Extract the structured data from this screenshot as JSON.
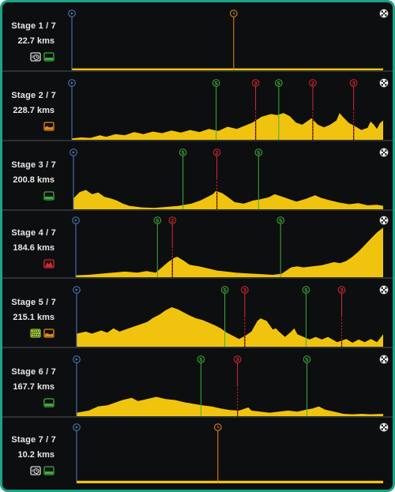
{
  "colors": {
    "background": "#0d0e10",
    "border": "#1aa487",
    "profile_fill": "#f0c30f",
    "sprint": "#3fae3a",
    "climb": "#d8282f",
    "start": "#4f7fbf",
    "time_check": "#e58a16",
    "text": "#e8e8e8"
  },
  "stages": [
    {
      "name": "Stage 1 / 7",
      "distance": "22.7 kms",
      "icons": [
        "time-trial-icon",
        "flat-icon"
      ],
      "marks": [
        {
          "type": "time",
          "km": 11.8
        }
      ],
      "profile": [
        [
          0,
          0.05
        ],
        [
          100,
          0.05
        ]
      ]
    },
    {
      "name": "Stage 2 / 7",
      "distance": "228.7 kms",
      "icons": [
        "hilly-icon"
      ],
      "marks": [
        {
          "type": "sprint",
          "km": 106
        },
        {
          "type": "climb",
          "km": 135,
          "label": "3"
        },
        {
          "type": "sprint",
          "km": 152
        },
        {
          "type": "climb",
          "km": 177,
          "label": "2"
        },
        {
          "type": "climb",
          "km": 207,
          "label": "3"
        }
      ],
      "profile": [
        [
          0,
          0.04
        ],
        [
          3,
          0.06
        ],
        [
          6,
          0.05
        ],
        [
          9,
          0.1
        ],
        [
          11,
          0.07
        ],
        [
          14,
          0.12
        ],
        [
          17,
          0.1
        ],
        [
          20,
          0.16
        ],
        [
          23,
          0.12
        ],
        [
          26,
          0.17
        ],
        [
          29,
          0.14
        ],
        [
          32,
          0.19
        ],
        [
          35,
          0.15
        ],
        [
          38,
          0.2
        ],
        [
          41,
          0.16
        ],
        [
          44,
          0.22
        ],
        [
          47,
          0.18
        ],
        [
          50,
          0.26
        ],
        [
          53,
          0.22
        ],
        [
          56,
          0.29
        ],
        [
          58,
          0.34
        ],
        [
          61,
          0.45
        ],
        [
          64,
          0.5
        ],
        [
          66,
          0.48
        ],
        [
          68,
          0.52
        ],
        [
          70,
          0.46
        ],
        [
          72,
          0.34
        ],
        [
          74,
          0.3
        ],
        [
          76,
          0.38
        ],
        [
          77,
          0.42
        ],
        [
          79,
          0.3
        ],
        [
          81,
          0.25
        ],
        [
          83,
          0.3
        ],
        [
          85,
          0.38
        ],
        [
          86,
          0.52
        ],
        [
          87,
          0.45
        ],
        [
          89,
          0.33
        ],
        [
          91,
          0.27
        ],
        [
          93,
          0.2
        ],
        [
          95,
          0.24
        ],
        [
          96,
          0.36
        ],
        [
          97,
          0.3
        ],
        [
          98,
          0.22
        ],
        [
          99,
          0.33
        ],
        [
          100,
          0.38
        ]
      ]
    },
    {
      "name": "Stage 3 / 7",
      "distance": "200.8 kms",
      "icons": [
        "flat-icon"
      ],
      "marks": [
        {
          "type": "sprint",
          "km": 71
        },
        {
          "type": "climb",
          "km": 93,
          "label": "2"
        },
        {
          "type": "sprint",
          "km": 120
        }
      ],
      "profile": [
        [
          0,
          0.22
        ],
        [
          2,
          0.34
        ],
        [
          4,
          0.38
        ],
        [
          6,
          0.3
        ],
        [
          8,
          0.33
        ],
        [
          10,
          0.25
        ],
        [
          12,
          0.22
        ],
        [
          14,
          0.18
        ],
        [
          16,
          0.12
        ],
        [
          18,
          0.08
        ],
        [
          22,
          0.05
        ],
        [
          26,
          0.04
        ],
        [
          30,
          0.06
        ],
        [
          34,
          0.08
        ],
        [
          38,
          0.12
        ],
        [
          41,
          0.18
        ],
        [
          43,
          0.24
        ],
        [
          45,
          0.3
        ],
        [
          46,
          0.36
        ],
        [
          48,
          0.32
        ],
        [
          50,
          0.24
        ],
        [
          52,
          0.15
        ],
        [
          55,
          0.12
        ],
        [
          58,
          0.18
        ],
        [
          60,
          0.2
        ],
        [
          63,
          0.24
        ],
        [
          65,
          0.3
        ],
        [
          67,
          0.26
        ],
        [
          70,
          0.2
        ],
        [
          72,
          0.16
        ],
        [
          75,
          0.21
        ],
        [
          78,
          0.28
        ],
        [
          80,
          0.23
        ],
        [
          83,
          0.18
        ],
        [
          86,
          0.14
        ],
        [
          89,
          0.11
        ],
        [
          92,
          0.13
        ],
        [
          95,
          0.09
        ],
        [
          98,
          0.1
        ],
        [
          100,
          0.08
        ]
      ]
    },
    {
      "name": "Stage 4 / 7",
      "distance": "184.6 kms",
      "icons": [
        "mountain-icon"
      ],
      "marks": [
        {
          "type": "sprint",
          "km": 49
        },
        {
          "type": "climb",
          "km": 58,
          "label": "2"
        },
        {
          "type": "sprint",
          "km": 123
        }
      ],
      "profile": [
        [
          0,
          0.05
        ],
        [
          4,
          0.06
        ],
        [
          8,
          0.08
        ],
        [
          12,
          0.1
        ],
        [
          16,
          0.12
        ],
        [
          20,
          0.1
        ],
        [
          23,
          0.13
        ],
        [
          26,
          0.1
        ],
        [
          28,
          0.2
        ],
        [
          30,
          0.3
        ],
        [
          32,
          0.38
        ],
        [
          33,
          0.4
        ],
        [
          35,
          0.33
        ],
        [
          37,
          0.25
        ],
        [
          40,
          0.22
        ],
        [
          43,
          0.18
        ],
        [
          46,
          0.14
        ],
        [
          49,
          0.12
        ],
        [
          52,
          0.1
        ],
        [
          55,
          0.09
        ],
        [
          58,
          0.08
        ],
        [
          61,
          0.07
        ],
        [
          64,
          0.06
        ],
        [
          67,
          0.08
        ],
        [
          70,
          0.2
        ],
        [
          72,
          0.22
        ],
        [
          74,
          0.2
        ],
        [
          77,
          0.22
        ],
        [
          80,
          0.24
        ],
        [
          82,
          0.27
        ],
        [
          84,
          0.3
        ],
        [
          86,
          0.28
        ],
        [
          88,
          0.32
        ],
        [
          90,
          0.4
        ],
        [
          92,
          0.5
        ],
        [
          94,
          0.62
        ],
        [
          96,
          0.74
        ],
        [
          98,
          0.86
        ],
        [
          100,
          0.95
        ]
      ]
    },
    {
      "name": "Stage 5 / 7",
      "distance": "215.1 kms",
      "icons": [
        "cobbles-icon",
        "hilly-icon"
      ],
      "marks": [
        {
          "type": "sprint",
          "km": 104
        },
        {
          "type": "climb",
          "km": 118,
          "label": "3"
        },
        {
          "type": "sprint",
          "km": 161
        },
        {
          "type": "climb",
          "km": 186,
          "label": "3"
        }
      ],
      "profile": [
        [
          0,
          0.26
        ],
        [
          3,
          0.3
        ],
        [
          5,
          0.26
        ],
        [
          8,
          0.32
        ],
        [
          10,
          0.28
        ],
        [
          12,
          0.36
        ],
        [
          14,
          0.3
        ],
        [
          17,
          0.36
        ],
        [
          20,
          0.42
        ],
        [
          23,
          0.48
        ],
        [
          25,
          0.56
        ],
        [
          27,
          0.62
        ],
        [
          29,
          0.7
        ],
        [
          31,
          0.76
        ],
        [
          33,
          0.72
        ],
        [
          35,
          0.66
        ],
        [
          37,
          0.6
        ],
        [
          39,
          0.55
        ],
        [
          41,
          0.52
        ],
        [
          43,
          0.47
        ],
        [
          45,
          0.42
        ],
        [
          47,
          0.36
        ],
        [
          49,
          0.28
        ],
        [
          51,
          0.22
        ],
        [
          53,
          0.16
        ],
        [
          55,
          0.22
        ],
        [
          57,
          0.3
        ],
        [
          58,
          0.4
        ],
        [
          59,
          0.5
        ],
        [
          60,
          0.55
        ],
        [
          62,
          0.5
        ],
        [
          63,
          0.42
        ],
        [
          64,
          0.34
        ],
        [
          65,
          0.36
        ],
        [
          66,
          0.3
        ],
        [
          68,
          0.2
        ],
        [
          70,
          0.3
        ],
        [
          71,
          0.36
        ],
        [
          72,
          0.25
        ],
        [
          74,
          0.2
        ],
        [
          76,
          0.15
        ],
        [
          78,
          0.2
        ],
        [
          80,
          0.15
        ],
        [
          82,
          0.2
        ],
        [
          85,
          0.1
        ],
        [
          88,
          0.16
        ],
        [
          90,
          0.09
        ],
        [
          92,
          0.15
        ],
        [
          94,
          0.1
        ],
        [
          96,
          0.16
        ],
        [
          98,
          0.1
        ],
        [
          100,
          0.25
        ]
      ]
    },
    {
      "name": "Stage 6 / 7",
      "distance": "167.7 kms",
      "icons": [
        "flat-icon"
      ],
      "marks": [
        {
          "type": "sprint",
          "km": 68
        },
        {
          "type": "climb",
          "km": 88,
          "label": "3"
        },
        {
          "type": "sprint",
          "km": 126
        }
      ],
      "profile": [
        [
          0,
          0.08
        ],
        [
          4,
          0.12
        ],
        [
          7,
          0.2
        ],
        [
          10,
          0.22
        ],
        [
          13,
          0.28
        ],
        [
          15,
          0.32
        ],
        [
          18,
          0.36
        ],
        [
          20,
          0.3
        ],
        [
          23,
          0.34
        ],
        [
          26,
          0.38
        ],
        [
          29,
          0.34
        ],
        [
          32,
          0.32
        ],
        [
          35,
          0.28
        ],
        [
          38,
          0.25
        ],
        [
          41,
          0.22
        ],
        [
          44,
          0.2
        ],
        [
          47,
          0.16
        ],
        [
          50,
          0.13
        ],
        [
          53,
          0.12
        ],
        [
          55,
          0.16
        ],
        [
          56,
          0.18
        ],
        [
          57,
          0.12
        ],
        [
          60,
          0.1
        ],
        [
          63,
          0.08
        ],
        [
          66,
          0.1
        ],
        [
          69,
          0.12
        ],
        [
          72,
          0.1
        ],
        [
          75,
          0.14
        ],
        [
          77,
          0.16
        ],
        [
          79,
          0.2
        ],
        [
          81,
          0.14
        ],
        [
          84,
          0.1
        ],
        [
          87,
          0.06
        ],
        [
          90,
          0.05
        ],
        [
          93,
          0.06
        ],
        [
          96,
          0.05
        ],
        [
          100,
          0.06
        ]
      ]
    },
    {
      "name": "Stage 7 / 7",
      "distance": "10.2 kms",
      "icons": [
        "time-trial-icon",
        "flat-icon"
      ],
      "marks": [
        {
          "type": "time",
          "km": 4.7
        }
      ],
      "profile": [
        [
          0,
          0.05
        ],
        [
          100,
          0.05
        ]
      ]
    }
  ]
}
